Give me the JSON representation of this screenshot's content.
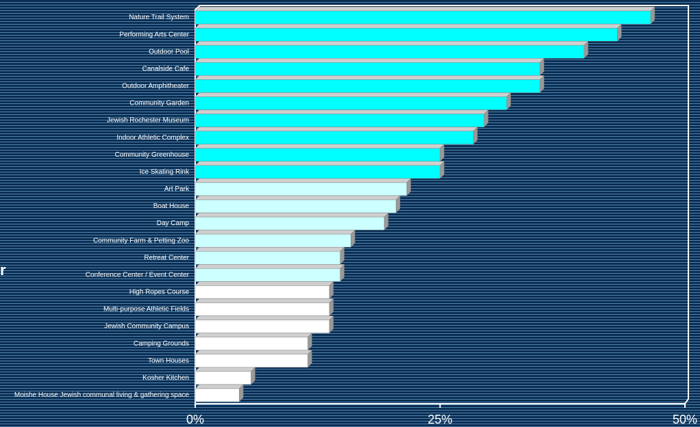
{
  "chart_data": {
    "type": "bar",
    "orientation": "horizontal",
    "annotation": "r",
    "categories": [
      "Nature Trail System",
      "Performing Arts Center",
      "Outdoor Pool",
      "Canalside Cafe",
      "Outdoor Amphitheater",
      "Community Garden",
      "Jewish Rochester Museum",
      "Indoor Athletic Complex",
      "Community Greenhouse",
      "Ice Skating Rink",
      "Art Park",
      "Boat House",
      "Day Camp",
      "Community Farm & Petting Zoo",
      "Retreat Center",
      "Conference Center / Event Center",
      "High Ropes Course",
      "Multi-purpose Athletic Fields",
      "Jewish Community Campus",
      "Camping Grounds",
      "Town Houses",
      "Kosher Kitchen",
      "Moishe House Jewish communal living & gathering space"
    ],
    "values": [
      46.5,
      43.1,
      39.7,
      35.2,
      35.2,
      31.8,
      29.5,
      28.4,
      25,
      25,
      21.6,
      20.5,
      19.3,
      15.9,
      14.8,
      14.8,
      13.7,
      13.7,
      13.7,
      11.5,
      11.5,
      5.7,
      4.5
    ],
    "colors": [
      "#00ffff",
      "#00ffff",
      "#00ffff",
      "#00ffff",
      "#00ffff",
      "#00ffff",
      "#00ffff",
      "#00ffff",
      "#00ffff",
      "#00ffff",
      "#ccffff",
      "#ccffff",
      "#ccffff",
      "#ccffff",
      "#ccffff",
      "#ccffff",
      "#ffffff",
      "#ffffff",
      "#ffffff",
      "#ffffff",
      "#ffffff",
      "#ffffff",
      "#ffffff"
    ],
    "xlim": [
      0,
      50
    ],
    "xticks": [
      {
        "value": 0,
        "label": "0%"
      },
      {
        "value": 25,
        "label": "25%"
      },
      {
        "value": 50,
        "label": "50%"
      }
    ]
  }
}
